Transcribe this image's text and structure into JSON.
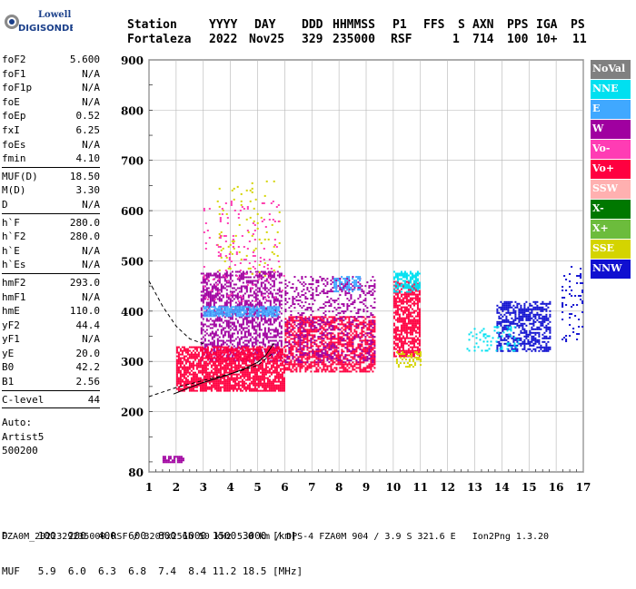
{
  "logo": {
    "line1": "Lowell",
    "line2": "DIGISONDE"
  },
  "header": {
    "labels": [
      "Station",
      "YYYY",
      "DAY",
      "DDD",
      "HHMMSS",
      "P1",
      "FFS",
      "S",
      "AXN",
      "PPS",
      "IGA",
      "PS"
    ],
    "values": [
      "Fortaleza",
      "2022",
      "Nov25",
      "329",
      "235000",
      "RSF",
      "",
      "1",
      "714",
      "100",
      "10+",
      "11"
    ]
  },
  "params": [
    {
      "group": [
        {
          "name": "foF2",
          "value": "5.600"
        },
        {
          "name": "foF1",
          "value": "N/A"
        },
        {
          "name": "foF1p",
          "value": "N/A"
        },
        {
          "name": "foE",
          "value": "N/A"
        },
        {
          "name": "foEp",
          "value": "0.52"
        },
        {
          "name": "fxI",
          "value": "6.25"
        },
        {
          "name": "foEs",
          "value": "N/A"
        },
        {
          "name": "fmin",
          "value": "4.10"
        }
      ]
    },
    {
      "group": [
        {
          "name": "MUF(D)",
          "value": "18.50"
        },
        {
          "name": "M(D)",
          "value": "3.30"
        },
        {
          "name": "D",
          "value": "N/A"
        }
      ]
    },
    {
      "group": [
        {
          "name": "h`F",
          "value": "280.0"
        },
        {
          "name": "h`F2",
          "value": "280.0"
        },
        {
          "name": "h`E",
          "value": "N/A"
        },
        {
          "name": "h`Es",
          "value": "N/A"
        }
      ]
    },
    {
      "group": [
        {
          "name": "hmF2",
          "value": "293.0"
        },
        {
          "name": "hmF1",
          "value": "N/A"
        },
        {
          "name": "hmE",
          "value": "110.0"
        },
        {
          "name": "yF2",
          "value": "44.4"
        },
        {
          "name": "yF1",
          "value": "N/A"
        },
        {
          "name": "yE",
          "value": "20.0"
        },
        {
          "name": "B0",
          "value": "42.2"
        },
        {
          "name": "B1",
          "value": "2.56"
        }
      ]
    },
    {
      "group": [
        {
          "name": "C-level",
          "value": "44"
        }
      ]
    }
  ],
  "auto": [
    "Auto:",
    "Artist5",
    "500200"
  ],
  "legend": [
    {
      "label": "NoVal",
      "color": "#808080"
    },
    {
      "label": "NNE",
      "color": "#00e0f0"
    },
    {
      "label": "E",
      "color": "#40a8ff"
    },
    {
      "label": "W",
      "color": "#a000a0"
    },
    {
      "label": "Vo-",
      "color": "#ff3cb4"
    },
    {
      "label": "Vo+",
      "color": "#ff0040"
    },
    {
      "label": "SSW",
      "color": "#ffb0b0"
    },
    {
      "label": "X-",
      "color": "#007800"
    },
    {
      "label": "X+",
      "color": "#6cbc3c"
    },
    {
      "label": "SSE",
      "color": "#d4d400"
    },
    {
      "label": "NNW",
      "color": "#1010d0"
    }
  ],
  "bottom": {
    "line1": "D     100  200  400  600  800 1000 1500 3000 [km]",
    "line2": "MUF   5.9  6.0  6.3  6.8  7.4  8.4 11.2 18.5 [MHz]"
  },
  "footer": "FZA0M_2022329235000.RSF / 320fx256h 50 kHz 5.0 km / DPS-4 FZA0M 904 / 3.9 S 321.6 E   Ion2Png 1.3.20",
  "chart_data": {
    "type": "scatter",
    "xlim": [
      1,
      17
    ],
    "ylim": [
      80,
      900
    ],
    "xticks": [
      1,
      2,
      3,
      4,
      5,
      6,
      7,
      8,
      9,
      10,
      11,
      12,
      13,
      14,
      15,
      16,
      17
    ],
    "yticks": [
      80,
      200,
      300,
      400,
      500,
      600,
      700,
      800,
      900
    ],
    "grid": true,
    "clusters": [
      {
        "name": "W",
        "color": "#a000a0",
        "x": [
          2.9,
          5.9
        ],
        "y": [
          300,
          480
        ],
        "density": 0.5
      },
      {
        "name": "Vo+",
        "color": "#ff0040",
        "x": [
          2.0,
          6.0
        ],
        "y": [
          240,
          330
        ],
        "density": 0.8
      },
      {
        "name": "E",
        "color": "#40a8ff",
        "x": [
          3.0,
          5.8
        ],
        "y": [
          390,
          410
        ],
        "density": 0.8
      },
      {
        "name": "Vo+",
        "color": "#ff0040",
        "x": [
          6.0,
          9.3
        ],
        "y": [
          280,
          390
        ],
        "density": 0.6
      },
      {
        "name": "W",
        "color": "#a000a0",
        "x": [
          6.0,
          9.3
        ],
        "y": [
          300,
          470
        ],
        "density": 0.25
      },
      {
        "name": "E",
        "color": "#40a8ff",
        "x": [
          7.8,
          8.8
        ],
        "y": [
          440,
          470
        ],
        "density": 0.5
      },
      {
        "name": "Vo+",
        "color": "#ff0040",
        "x": [
          10.0,
          11.0
        ],
        "y": [
          310,
          460
        ],
        "density": 0.7
      },
      {
        "name": "NNE",
        "color": "#00e0f0",
        "x": [
          10.0,
          11.0
        ],
        "y": [
          440,
          480
        ],
        "density": 0.6
      },
      {
        "name": "SSE",
        "color": "#d4d400",
        "x": [
          10.1,
          11.0
        ],
        "y": [
          290,
          320
        ],
        "density": 0.4
      },
      {
        "name": "NNW",
        "color": "#1010d0",
        "x": [
          13.8,
          15.8
        ],
        "y": [
          320,
          420
        ],
        "density": 0.55
      },
      {
        "name": "NNE",
        "color": "#00e0f0",
        "x": [
          12.7,
          14.6
        ],
        "y": [
          320,
          370
        ],
        "density": 0.15
      },
      {
        "name": "SSE",
        "color": "#d4d400",
        "x": [
          3.5,
          5.8
        ],
        "y": [
          470,
          660
        ],
        "density": 0.04
      },
      {
        "name": "Vo-",
        "color": "#ff3cb4",
        "x": [
          3.0,
          6.0
        ],
        "y": [
          420,
          620
        ],
        "density": 0.05
      },
      {
        "name": "NNW",
        "color": "#1010d0",
        "x": [
          16.2,
          17.0
        ],
        "y": [
          340,
          490
        ],
        "density": 0.12
      },
      {
        "name": "W",
        "color": "#a000a0",
        "x": [
          1.5,
          2.3
        ],
        "y": [
          100,
          112
        ],
        "density": 0.8
      }
    ],
    "curves": [
      {
        "style": "dashed",
        "points": [
          [
            1,
            460
          ],
          [
            1.5,
            410
          ],
          [
            2,
            370
          ],
          [
            2.5,
            345
          ],
          [
            3,
            335
          ]
        ]
      },
      {
        "style": "dashed",
        "points": [
          [
            1,
            230
          ],
          [
            2,
            248
          ],
          [
            3,
            262
          ],
          [
            4,
            275
          ],
          [
            5,
            292
          ],
          [
            5.6,
            318
          ]
        ]
      },
      {
        "style": "solid",
        "points": [
          [
            1.9,
            235
          ],
          [
            2.5,
            248
          ],
          [
            3,
            258
          ],
          [
            3.5,
            266
          ],
          [
            4,
            275
          ],
          [
            4.5,
            285
          ],
          [
            5,
            298
          ],
          [
            5.3,
            312
          ],
          [
            5.6,
            336
          ]
        ]
      }
    ]
  }
}
